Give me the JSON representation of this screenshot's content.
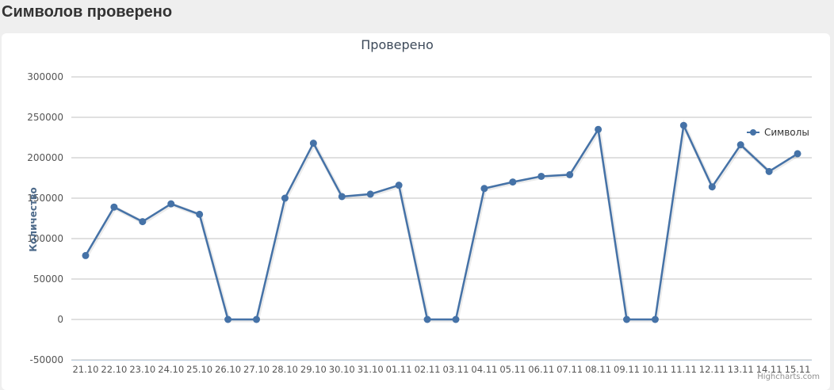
{
  "header": {
    "title": "Символов проверено"
  },
  "credits": "Highcharts.com",
  "colors": {
    "series": "#4572a7",
    "grid": "#c0c0c0"
  },
  "chart_data": {
    "type": "line",
    "title": "Проверено",
    "ylabel": "Количество",
    "xlabel": "",
    "ylim": [
      -50000,
      300000
    ],
    "yticks": [
      300000,
      250000,
      200000,
      150000,
      100000,
      50000,
      0,
      -50000
    ],
    "grid": true,
    "legend_position": "right",
    "categories": [
      "21.10",
      "22.10",
      "23.10",
      "24.10",
      "25.10",
      "26.10",
      "27.10",
      "28.10",
      "29.10",
      "30.10",
      "31.10",
      "01.11",
      "02.11",
      "03.11",
      "04.11",
      "05.11",
      "06.11",
      "07.11",
      "08.11",
      "09.11",
      "10.11",
      "11.11",
      "12.11",
      "13.11",
      "14.11",
      "15.11"
    ],
    "series": [
      {
        "name": "Символы",
        "values": [
          79000,
          139000,
          121000,
          143000,
          130000,
          0,
          0,
          150000,
          218000,
          152000,
          155000,
          166000,
          0,
          0,
          162000,
          170000,
          177000,
          179000,
          235000,
          0,
          0,
          240000,
          164000,
          216000,
          183000,
          205000
        ]
      }
    ]
  }
}
